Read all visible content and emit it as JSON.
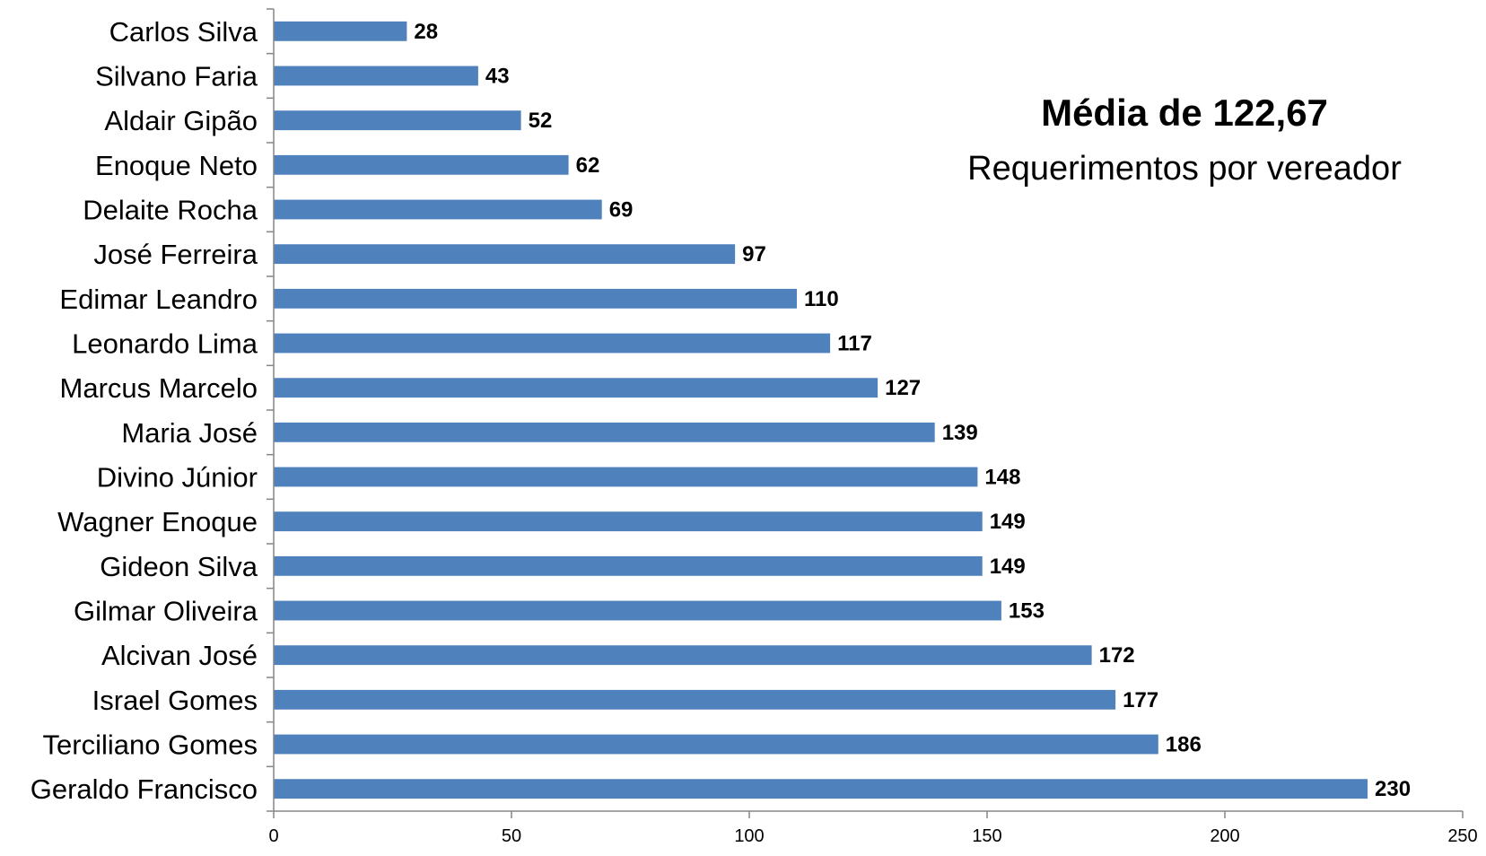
{
  "chart_data": {
    "type": "bar",
    "orientation": "horizontal",
    "categories": [
      "Carlos Silva",
      "Silvano Faria",
      "Aldair Gipão",
      "Enoque Neto",
      "Delaite Rocha",
      "José Ferreira",
      "Edimar Leandro",
      "Leonardo Lima",
      "Marcus Marcelo",
      "Maria José",
      "Divino Júnior",
      "Wagner Enoque",
      "Gideon Silva",
      "Gilmar Oliveira",
      "Alcivan José",
      "Israel Gomes",
      "Terciliano Gomes",
      "Geraldo Francisco"
    ],
    "values": [
      28,
      43,
      52,
      62,
      69,
      97,
      110,
      117,
      127,
      139,
      148,
      149,
      149,
      153,
      172,
      177,
      186,
      230
    ],
    "xlim": [
      0,
      250
    ],
    "xticks": [
      "0",
      "50",
      "100",
      "150",
      "200",
      "250"
    ],
    "bar_color": "#4f81bd",
    "grid": false,
    "legend": "none",
    "data_labels": true
  },
  "annotation": {
    "title": "Média de 122,67",
    "subtitle": "Requerimentos por vereador"
  }
}
